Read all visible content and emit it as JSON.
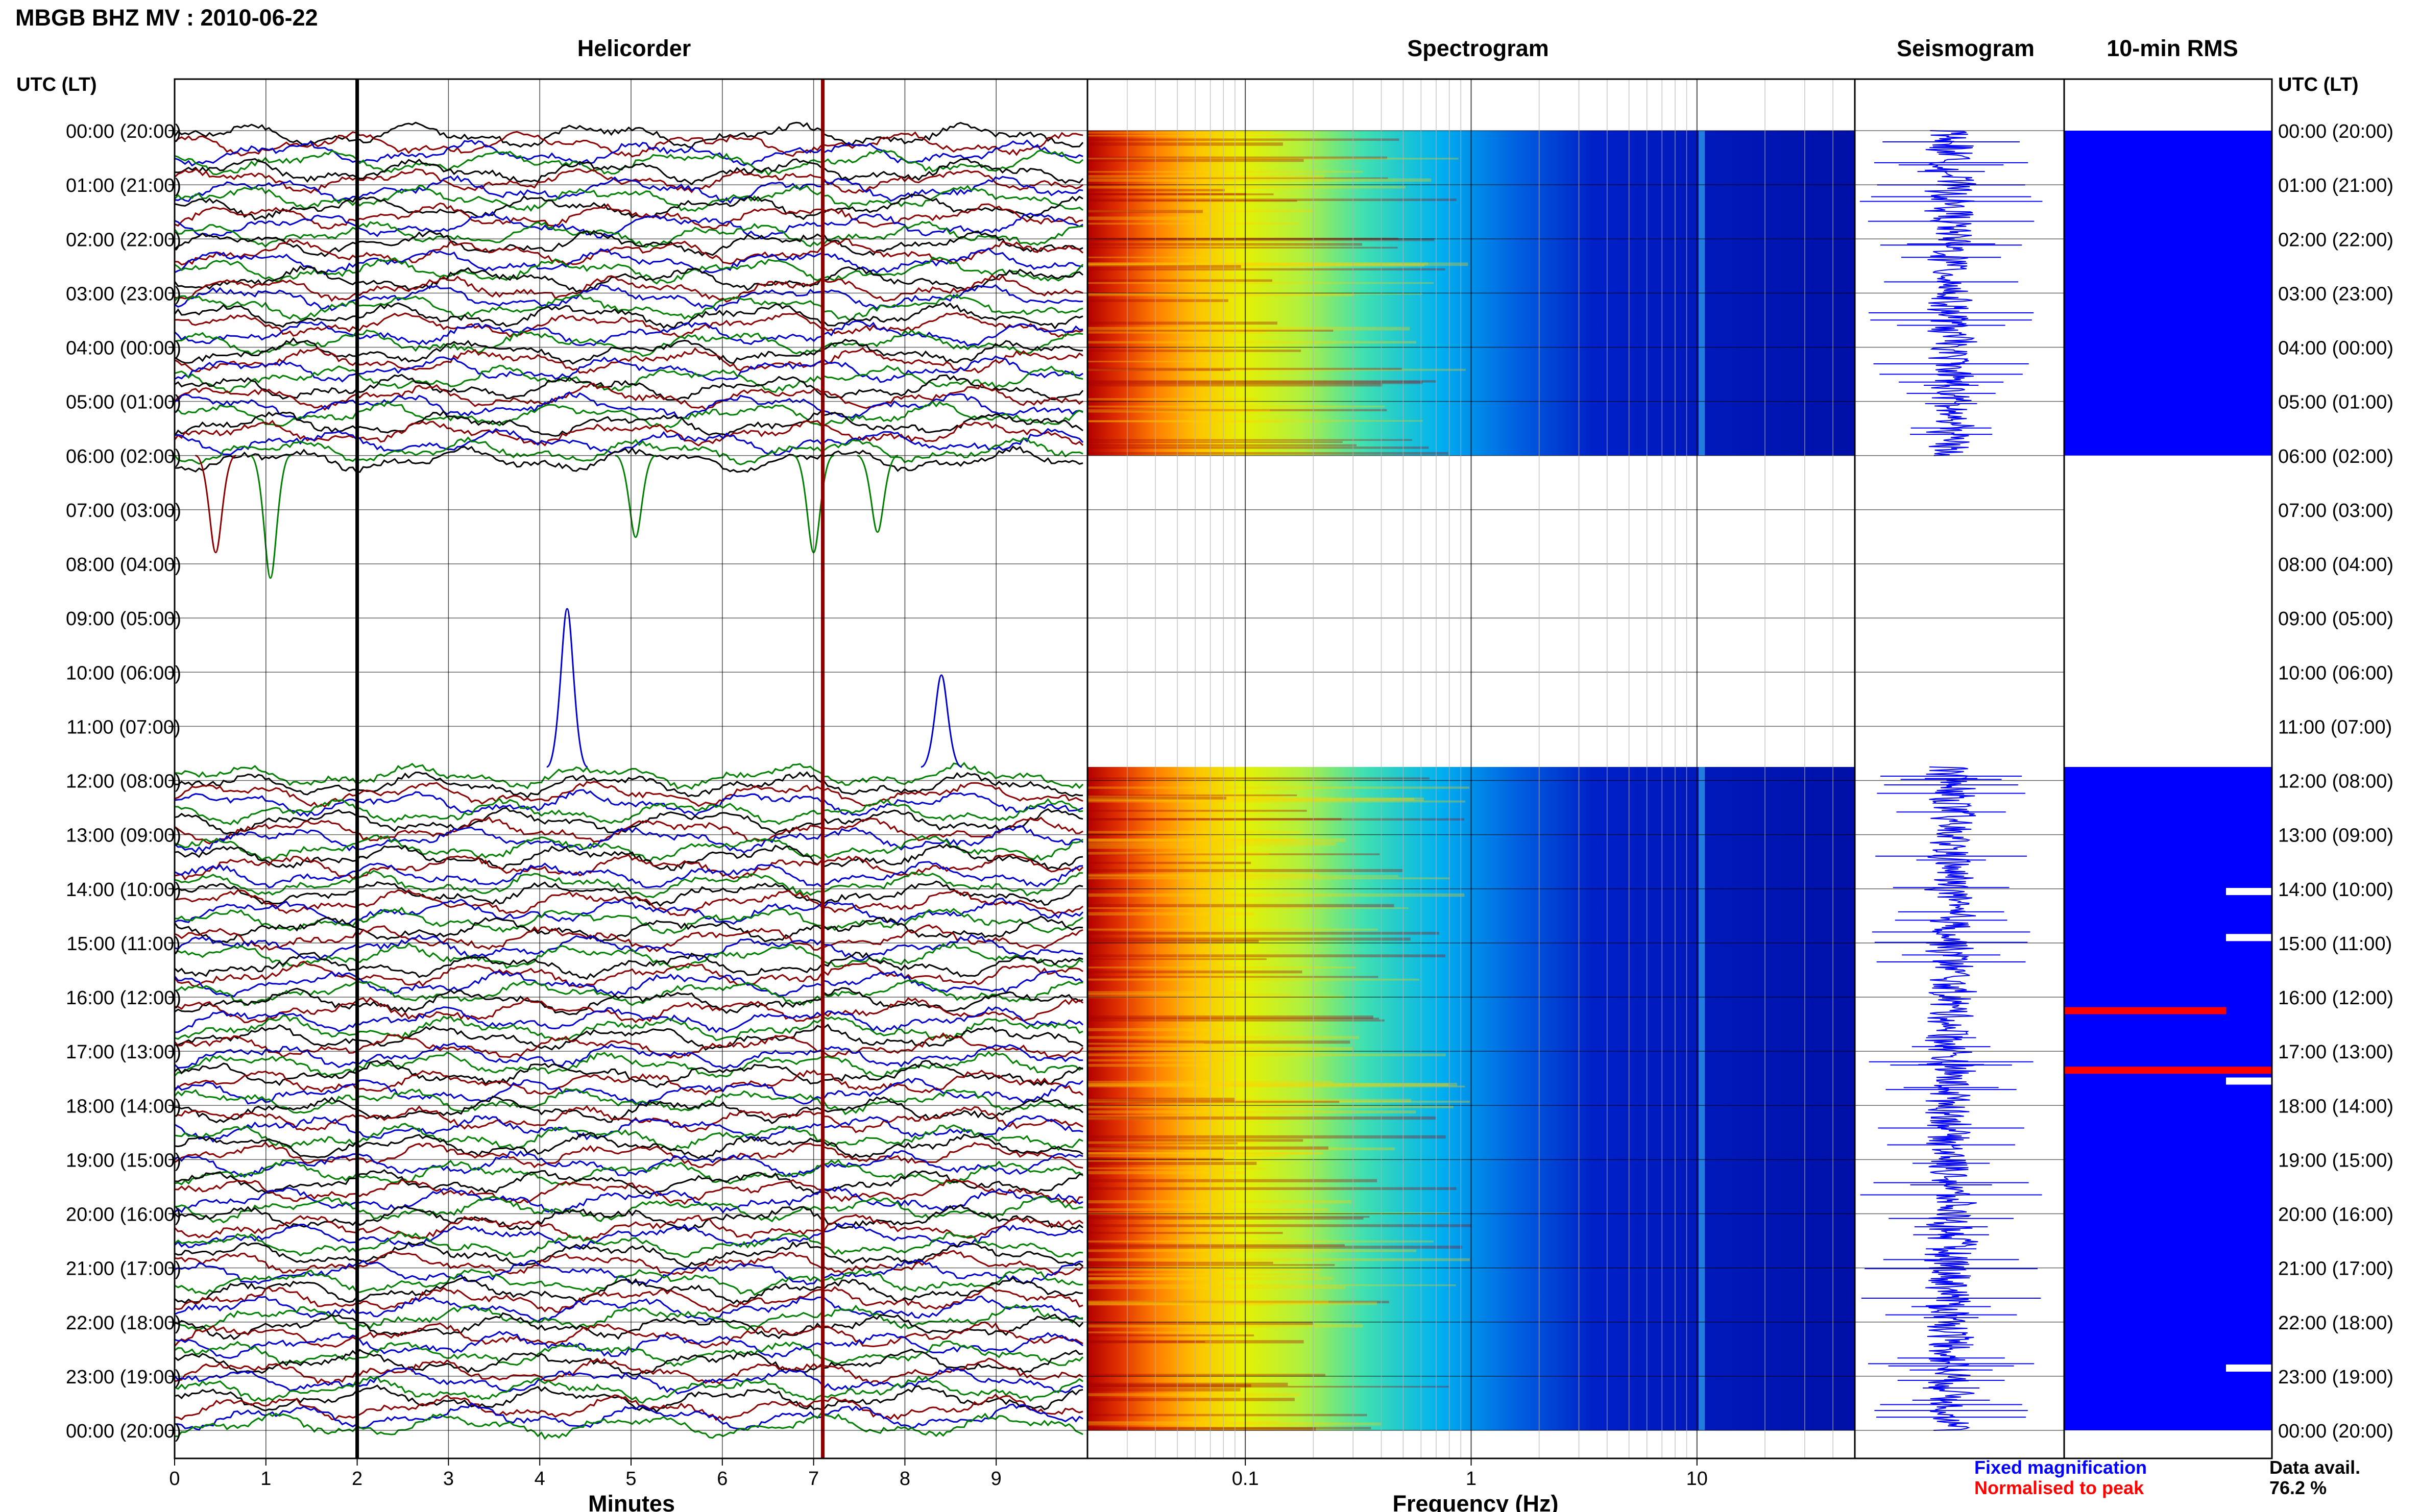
{
  "header": {
    "station_title": "MBGB BHZ MV : 2010-06-22",
    "panel_titles": {
      "helicorder": "Helicorder",
      "spectrogram": "Spectrogram",
      "seismogram": "Seismogram",
      "rms": "10-min RMS"
    },
    "time_axis_label": "UTC (LT)"
  },
  "legend": {
    "fixed_magnification": "Fixed magnification",
    "normalised_to_peak": "Normalised to peak",
    "data_avail_label": "Data avail.",
    "data_avail_value": "76.2 %"
  },
  "colors": {
    "fixed": "#0000ff",
    "normalised": "#ff0000",
    "trace_cycle": [
      "#000000",
      "#8b0000",
      "#0000cd",
      "#008000"
    ],
    "rms_fill": "#0000ff"
  },
  "chart_data": {
    "type": "heatmap",
    "hour_labels": [
      "00:00 (20:00)",
      "01:00 (21:00)",
      "02:00 (22:00)",
      "03:00 (23:00)",
      "04:00 (00:00)",
      "05:00 (01:00)",
      "06:00 (02:00)",
      "07:00 (03:00)",
      "08:00 (04:00)",
      "09:00 (05:00)",
      "10:00 (06:00)",
      "11:00 (07:00)",
      "12:00 (08:00)",
      "13:00 (09:00)",
      "14:00 (10:00)",
      "15:00 (11:00)",
      "16:00 (12:00)",
      "17:00 (13:00)",
      "18:00 (14:00)",
      "19:00 (15:00)",
      "20:00 (16:00)",
      "21:00 (17:00)",
      "22:00 (18:00)",
      "23:00 (19:00)",
      "00:00 (20:00)"
    ],
    "data_intervals_utc_hours": [
      [
        0,
        6
      ],
      [
        11.75,
        24
      ]
    ],
    "helicorder": {
      "xlabel": "Minutes",
      "x_ticks": [
        "0",
        "1",
        "2",
        "3",
        "4",
        "5",
        "6",
        "7",
        "8",
        "9"
      ],
      "xlim": [
        0,
        10
      ],
      "marker_lines_minutes": [
        {
          "minute": 2.0,
          "color": "#000000"
        },
        {
          "minute": 7.1,
          "color": "#8b0000"
        }
      ]
    },
    "spectrogram": {
      "xlabel": "Frequency (Hz)",
      "x_scale": "log",
      "xlim": [
        0.02,
        50
      ],
      "x_ticks": [
        "0.1",
        "1",
        "10"
      ],
      "x_tick_values": [
        0.1,
        1,
        10
      ],
      "colormap": "jet",
      "spectral_line_hz": 10.5
    },
    "seismogram": {
      "trace_color": "#0000ff"
    },
    "rms": {
      "fill_color": "#0000ff",
      "highlight_color": "#ff0000",
      "highlight_rows_utc_hours": [
        16.25,
        17.35
      ],
      "gap_marks_utc_hours": [
        14.05,
        14.9,
        17.55,
        22.85
      ]
    }
  }
}
